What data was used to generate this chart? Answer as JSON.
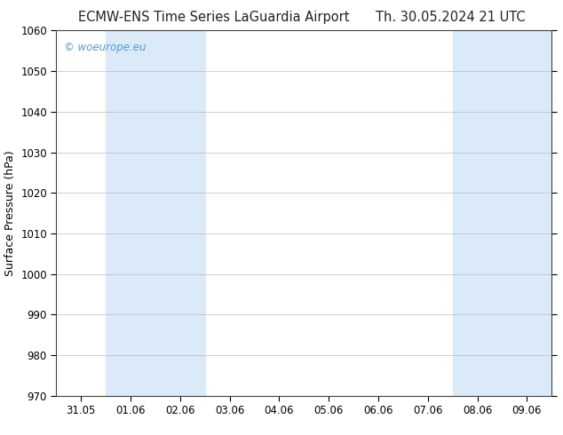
{
  "title_left": "ECMW-ENS Time Series LaGuardia Airport",
  "title_right": "Th. 30.05.2024 21 UTC",
  "ylabel": "Surface Pressure (hPa)",
  "ylim": [
    970,
    1060
  ],
  "yticks": [
    970,
    980,
    990,
    1000,
    1010,
    1020,
    1030,
    1040,
    1050,
    1060
  ],
  "xlabel_ticks": [
    "31.05",
    "01.06",
    "02.06",
    "03.06",
    "04.06",
    "05.06",
    "06.06",
    "07.06",
    "08.06",
    "09.06"
  ],
  "x_positions": [
    0,
    1,
    2,
    3,
    4,
    5,
    6,
    7,
    8,
    9
  ],
  "xlim": [
    -0.5,
    9.5
  ],
  "shaded_bands": [
    {
      "x_start": 0.5,
      "x_end": 2.5
    },
    {
      "x_start": 7.5,
      "x_end": 9.5
    }
  ],
  "right_sliver": {
    "x_start": 9.3,
    "x_end": 9.5
  },
  "background_color": "#ffffff",
  "plot_bg_color": "#ffffff",
  "watermark_text": "© woeurope.eu",
  "watermark_color": "#5599cc",
  "title_fontsize": 10.5,
  "tick_fontsize": 8.5,
  "ylabel_fontsize": 9,
  "grid_color": "#bbbbbb",
  "grid_linewidth": 0.5,
  "shaded_color": "#daeaf8",
  "spine_color": "#444444",
  "spine_linewidth": 0.8
}
